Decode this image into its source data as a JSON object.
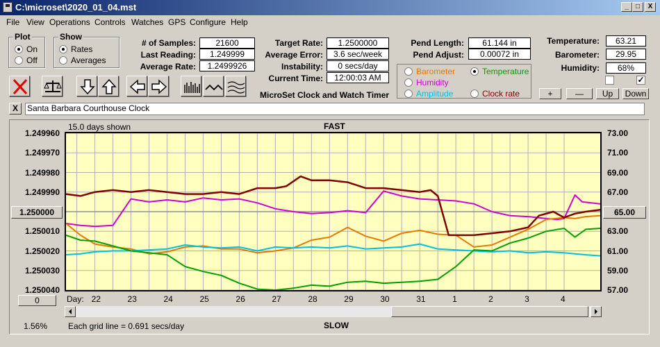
{
  "window": {
    "title": "C:\\microset\\2020_01_04.mst",
    "btn_min": "_",
    "btn_max": "□",
    "btn_close": "X"
  },
  "menu": [
    "File",
    "View",
    "Operations",
    "Controls",
    "Watches",
    "GPS",
    "Configure",
    "Help"
  ],
  "plot_group": {
    "label": "Plot",
    "on": "On",
    "off": "Off",
    "selected": "On"
  },
  "show_group": {
    "label": "Show",
    "rates": "Rates",
    "averages": "Averages",
    "selected": "Rates"
  },
  "stats": {
    "samples_label": "# of Samples:",
    "samples": "21600",
    "last_label": "Last Reading:",
    "last": "1.249999",
    "avg_rate_label": "Average Rate:",
    "avg_rate": "1.2499926",
    "target_label": "Target Rate:",
    "target": "1.2500000",
    "avg_err_label": "Average Error:",
    "avg_err": "3.6 sec/week",
    "instab_label": "Instability:",
    "instab": "0 secs/day",
    "time_label": "Current Time:",
    "time": "12:00:03 AM",
    "pend_len_label": "Pend Length:",
    "pend_len": "61.144 in",
    "pend_adj_label": "Pend Adjust:",
    "pend_adj": "0.00072 in",
    "temp_label": "Temperature:",
    "temp": "63.21",
    "baro_label": "Barometer:",
    "baro": "29.95",
    "hum_label": "Humidity:",
    "hum": "68%"
  },
  "app_caption": "MicroSet Clock and Watch Timer",
  "sensor_options": [
    {
      "label": "Barometer",
      "color": "#e87800",
      "selected": false
    },
    {
      "label": "Temperature",
      "color": "#00a000",
      "selected": true
    },
    {
      "label": "Humidity",
      "color": "#d000d0",
      "selected": false
    },
    {
      "label": "Clock rate",
      "color": "#800000",
      "selected": false
    },
    {
      "label": "Amplitude",
      "color": "#00c0e0",
      "selected": false
    }
  ],
  "adjust_buttons": {
    "plus": "+",
    "minus": "—",
    "up": "Up",
    "down": "Down"
  },
  "checkboxes": [
    {
      "checked": false,
      "mark": ""
    },
    {
      "checked": true,
      "mark": "✓"
    }
  ],
  "clock_name": "Santa Barbara Courthouse Clock",
  "clear_btn": "X",
  "chart_info": {
    "days_shown": "15.0 days shown",
    "fast": "FAST",
    "slow": "SLOW",
    "grid_note": "Each grid line = 0.691 secs/day",
    "zoom": "1.56%",
    "day_label": "Day:",
    "left_btn": "0",
    "mid_left_btn": "1.250000",
    "mid_right_btn": "65.00"
  },
  "chart_data": {
    "type": "line",
    "left_axis": {
      "ticks": [
        "1.249960",
        "1.249970",
        "1.249980",
        "1.249990",
        "1.250000",
        "1.250010",
        "1.250020",
        "1.250030",
        "1.250040"
      ],
      "range": [
        1.24996,
        1.25004
      ],
      "inverted": true
    },
    "right_axis": {
      "ticks": [
        "73.00",
        "71.00",
        "69.00",
        "67.00",
        "65.00",
        "63.00",
        "61.00",
        "59.00",
        "57.00"
      ],
      "range": [
        57,
        73
      ]
    },
    "x_ticks": [
      "22",
      "23",
      "24",
      "25",
      "26",
      "27",
      "28",
      "29",
      "30",
      "31",
      "1",
      "2",
      "3",
      "4"
    ],
    "x_range": [
      21.2,
      36.0
    ],
    "grid": true,
    "series": [
      {
        "name": "Clock rate",
        "color": "#800000",
        "axis": "left",
        "x": [
          21.2,
          21.6,
          22.0,
          22.5,
          23.0,
          23.5,
          24.0,
          24.5,
          25.0,
          25.5,
          26.0,
          26.5,
          27.0,
          27.3,
          27.7,
          28.0,
          28.5,
          29.0,
          29.5,
          30.0,
          30.5,
          31.0,
          31.3,
          31.5,
          31.8,
          32.0,
          32.5,
          33.0,
          33.5,
          34.0,
          34.3,
          34.7,
          35.0,
          35.3,
          35.6,
          36.0
        ],
        "y": [
          1.249991,
          1.249992,
          1.24999,
          1.249989,
          1.24999,
          1.249989,
          1.24999,
          1.249991,
          1.249991,
          1.24999,
          1.249991,
          1.249988,
          1.249988,
          1.249987,
          1.249982,
          1.249984,
          1.249984,
          1.249985,
          1.249988,
          1.249988,
          1.249989,
          1.24999,
          1.249989,
          1.249992,
          1.250012,
          1.250012,
          1.250012,
          1.250011,
          1.25001,
          1.250008,
          1.250002,
          1.25,
          1.250003,
          1.250001,
          1.25,
          1.249999
        ]
      },
      {
        "name": "Humidity",
        "color": "#d000d0",
        "axis": "right",
        "x": [
          21.2,
          21.6,
          22.0,
          22.5,
          23.0,
          23.5,
          24.0,
          24.5,
          25.0,
          25.5,
          26.0,
          26.5,
          27.0,
          27.5,
          28.0,
          28.5,
          29.0,
          29.5,
          30.0,
          30.5,
          31.0,
          31.5,
          32.0,
          32.5,
          33.0,
          33.5,
          34.0,
          34.5,
          34.8,
          35.0,
          35.3,
          35.5,
          36.0
        ],
        "y": [
          63.8,
          63.6,
          63.5,
          63.6,
          66.3,
          66.0,
          66.2,
          66.0,
          66.4,
          66.2,
          66.3,
          65.9,
          65.3,
          65.0,
          64.8,
          64.9,
          65.1,
          64.9,
          67.1,
          66.6,
          66.3,
          66.2,
          66.1,
          65.8,
          65.0,
          64.6,
          64.5,
          64.3,
          64.2,
          64.3,
          66.7,
          66.0,
          65.8
        ]
      },
      {
        "name": "Barometer",
        "color": "#e87800",
        "axis": "right",
        "x": [
          21.2,
          21.6,
          22.0,
          22.5,
          23.0,
          23.5,
          24.0,
          24.5,
          25.0,
          25.5,
          26.0,
          26.5,
          27.0,
          27.5,
          28.0,
          28.5,
          29.0,
          29.5,
          30.0,
          30.5,
          31.0,
          31.5,
          32.0,
          32.5,
          33.0,
          33.5,
          34.0,
          34.5,
          35.0,
          35.3,
          35.6,
          36.0
        ],
        "y": [
          63.8,
          62.6,
          61.7,
          61.4,
          61.2,
          60.7,
          60.9,
          61.4,
          61.5,
          61.2,
          61.2,
          60.8,
          61.0,
          61.3,
          62.1,
          62.4,
          63.4,
          62.5,
          62.0,
          62.8,
          63.1,
          62.7,
          62.6,
          61.4,
          61.6,
          62.4,
          63.2,
          64.2,
          64.4,
          64.3,
          64.5,
          64.6
        ]
      },
      {
        "name": "Temperature",
        "color": "#00a000",
        "axis": "right",
        "x": [
          21.2,
          21.6,
          22.0,
          22.5,
          23.0,
          23.5,
          24.0,
          24.5,
          25.0,
          25.5,
          26.0,
          26.5,
          27.0,
          27.5,
          28.0,
          28.5,
          29.0,
          29.5,
          30.0,
          30.5,
          31.0,
          31.5,
          32.0,
          32.5,
          33.0,
          33.5,
          34.0,
          34.5,
          35.0,
          35.3,
          35.6,
          36.0
        ],
        "y": [
          62.6,
          62.1,
          62.0,
          61.5,
          61.0,
          60.8,
          60.6,
          59.4,
          58.9,
          58.5,
          57.7,
          57.1,
          57.0,
          57.2,
          57.5,
          57.4,
          57.8,
          57.9,
          57.7,
          57.8,
          57.9,
          58.1,
          59.4,
          61.1,
          61.0,
          61.8,
          62.3,
          63.0,
          63.3,
          62.4,
          63.2,
          63.3
        ]
      },
      {
        "name": "Amplitude",
        "color": "#00c0e0",
        "axis": "right",
        "x": [
          21.2,
          21.6,
          22.0,
          22.5,
          23.0,
          23.5,
          24.0,
          24.5,
          25.0,
          25.5,
          26.0,
          26.5,
          27.0,
          27.5,
          28.0,
          28.5,
          29.0,
          29.5,
          30.0,
          30.5,
          31.0,
          31.5,
          32.0,
          32.5,
          33.0,
          33.5,
          34.0,
          34.5,
          35.0,
          35.3,
          35.6,
          36.0
        ],
        "y": [
          60.6,
          60.7,
          60.9,
          61.0,
          61.0,
          61.1,
          61.2,
          61.6,
          61.4,
          61.3,
          61.4,
          61.0,
          61.4,
          61.3,
          61.4,
          61.3,
          61.5,
          61.2,
          61.3,
          61.4,
          61.7,
          61.2,
          61.1,
          61.0,
          60.9,
          61.0,
          60.8,
          60.9,
          60.8,
          60.7,
          60.6,
          60.5
        ]
      }
    ]
  }
}
